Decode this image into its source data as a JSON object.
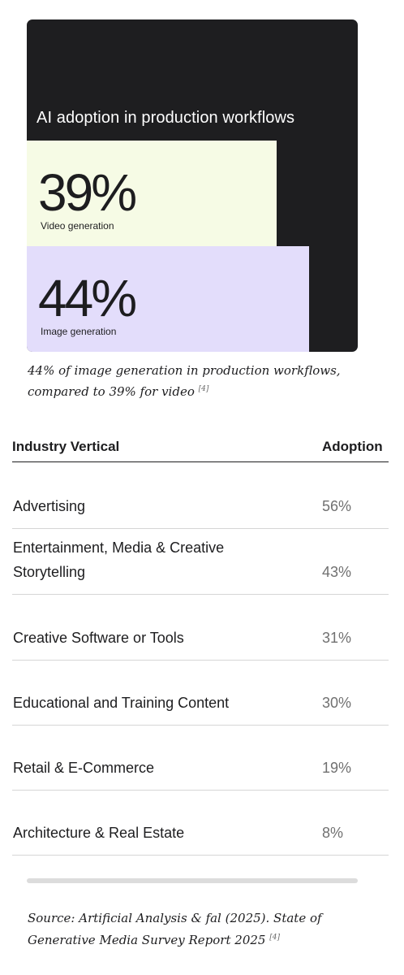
{
  "card": {
    "title": "AI adoption in production workflows",
    "background_color": "#1e1e20"
  },
  "chart_data": {
    "type": "bar",
    "title": "AI adoption in production workflows",
    "categories": [
      "Video generation",
      "Image generation"
    ],
    "values": [
      39,
      44
    ],
    "value_labels": [
      "39%",
      "44%"
    ],
    "colors": [
      "#f6fbe5",
      "#e3ddfb"
    ],
    "unit": "%"
  },
  "caption": {
    "text": "44% of image generation in production workflows, compared to 39% for video",
    "ref": "[4]"
  },
  "table": {
    "headers": {
      "vertical": "Industry Vertical",
      "adoption": "Adoption"
    },
    "rows": [
      {
        "name": "Advertising",
        "value": "56%"
      },
      {
        "name": "Entertainment, Media & Creative Storytelling",
        "value": "43%"
      },
      {
        "name": "Creative Software or Tools",
        "value": "31%"
      },
      {
        "name": "Educational and Training Content",
        "value": "30%"
      },
      {
        "name": "Retail & E-Commerce",
        "value": "19%"
      },
      {
        "name": "Architecture & Real Estate",
        "value": "8%"
      }
    ]
  },
  "source": {
    "text": "Source: Artificial Analysis & fal (2025). State of Generative Media Survey Report 2025",
    "ref": "[4]"
  }
}
